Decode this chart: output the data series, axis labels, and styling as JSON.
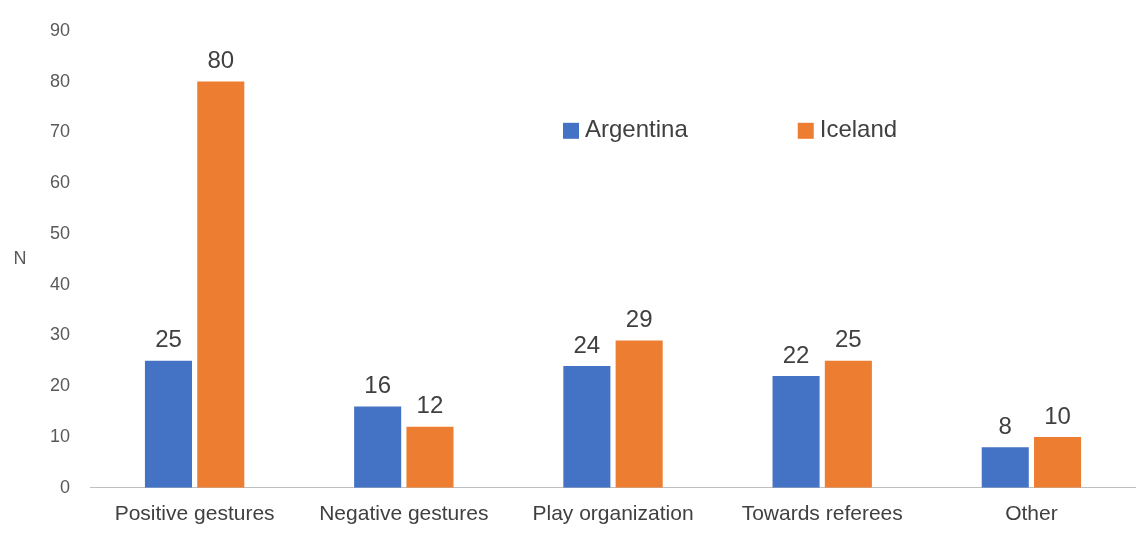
{
  "chart_data": {
    "type": "bar",
    "ylabel": "N",
    "categories": [
      "Positive gestures",
      "Negative gestures",
      "Play organization",
      "Towards referees",
      "Other"
    ],
    "series": [
      {
        "name": "Argentina",
        "color": "#4472c4",
        "values": [
          25,
          16,
          24,
          22,
          8
        ]
      },
      {
        "name": "Iceland",
        "color": "#ed7d31",
        "values": [
          80,
          12,
          29,
          25,
          10
        ]
      }
    ],
    "ylim": [
      0,
      90
    ],
    "yticks": [
      0,
      10,
      20,
      30,
      40,
      50,
      60,
      70,
      80,
      90
    ],
    "grid": false,
    "legend": "top",
    "data_labels": true
  }
}
